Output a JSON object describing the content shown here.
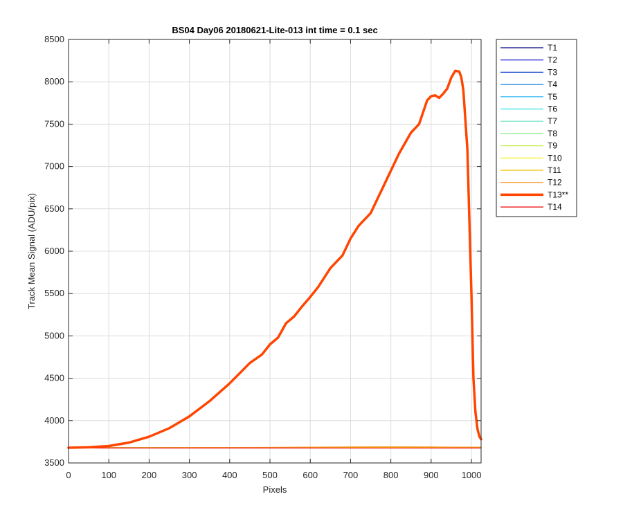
{
  "chart_data": {
    "type": "line",
    "title": "BS04 Day06 20180621-Lite-013 int time = 0.1 sec",
    "xlabel": "Pixels",
    "ylabel": "Track Mean Signal (ADU/pix)",
    "xlim": [
      0,
      1024
    ],
    "ylim": [
      3500,
      8500
    ],
    "xticks": [
      0,
      100,
      200,
      300,
      400,
      500,
      600,
      700,
      800,
      900,
      1000
    ],
    "yticks": [
      3500,
      4000,
      4500,
      5000,
      5500,
      6000,
      6500,
      7000,
      7500,
      8000,
      8500
    ],
    "grid": true,
    "legend_position": "outside-right-top",
    "series": [
      {
        "name": "T1",
        "color": "#00007f",
        "width": 1.2,
        "x": [
          0,
          1024
        ],
        "y": [
          3680,
          3680
        ]
      },
      {
        "name": "T2",
        "color": "#0000c8",
        "width": 1.2,
        "x": [
          0,
          1024
        ],
        "y": [
          3680,
          3680
        ]
      },
      {
        "name": "T3",
        "color": "#0a3ccc",
        "width": 1.2,
        "x": [
          0,
          1024
        ],
        "y": [
          3680,
          3680
        ]
      },
      {
        "name": "T4",
        "color": "#1580e0",
        "width": 1.2,
        "x": [
          0,
          1024
        ],
        "y": [
          3680,
          3680
        ]
      },
      {
        "name": "T5",
        "color": "#1fb0f0",
        "width": 1.2,
        "x": [
          0,
          1024
        ],
        "y": [
          3680,
          3680
        ]
      },
      {
        "name": "T6",
        "color": "#2ce0e8",
        "width": 1.2,
        "x": [
          0,
          1024
        ],
        "y": [
          3680,
          3680
        ]
      },
      {
        "name": "T7",
        "color": "#66e0c0",
        "width": 1.2,
        "x": [
          0,
          1024
        ],
        "y": [
          3680,
          3680
        ]
      },
      {
        "name": "T8",
        "color": "#88e888",
        "width": 1.2,
        "x": [
          0,
          1024
        ],
        "y": [
          3680,
          3680
        ]
      },
      {
        "name": "T9",
        "color": "#c8ee55",
        "width": 1.2,
        "x": [
          0,
          1024
        ],
        "y": [
          3680,
          3680
        ]
      },
      {
        "name": "T10",
        "color": "#f5f000",
        "width": 1.2,
        "x": [
          0,
          1024
        ],
        "y": [
          3680,
          3684
        ]
      },
      {
        "name": "T11",
        "color": "#f0c000",
        "width": 1.2,
        "x": [
          0,
          250,
          500,
          700,
          800,
          900,
          1024
        ],
        "y": [
          3678,
          3680,
          3683,
          3688,
          3689,
          3688,
          3685
        ]
      },
      {
        "name": "T12",
        "color": "#f59a2a",
        "width": 1.2,
        "x": [
          0,
          250,
          500,
          700,
          800,
          900,
          1024
        ],
        "y": [
          3680,
          3681,
          3684,
          3689,
          3690,
          3689,
          3686
        ]
      },
      {
        "name": "T13**",
        "color": "#ff4500",
        "width": 3.5,
        "x": [
          0,
          50,
          100,
          150,
          200,
          250,
          300,
          350,
          400,
          450,
          480,
          500,
          520,
          540,
          560,
          580,
          600,
          620,
          650,
          680,
          700,
          720,
          750,
          780,
          800,
          820,
          850,
          870,
          890,
          900,
          910,
          920,
          930,
          940,
          950,
          960,
          970,
          975,
          980,
          990,
          1000,
          1005,
          1010,
          1015,
          1020,
          1024
        ],
        "y": [
          3680,
          3685,
          3700,
          3740,
          3810,
          3910,
          4050,
          4230,
          4440,
          4680,
          4780,
          4900,
          4980,
          5150,
          5230,
          5350,
          5460,
          5580,
          5800,
          5950,
          6150,
          6300,
          6450,
          6750,
          6950,
          7150,
          7400,
          7500,
          7780,
          7830,
          7840,
          7810,
          7860,
          7920,
          8050,
          8130,
          8120,
          8050,
          7900,
          7200,
          5500,
          4500,
          4100,
          3900,
          3810,
          3780
        ]
      },
      {
        "name": "T14",
        "color": "#e80000",
        "width": 1.2,
        "x": [
          0,
          1024
        ],
        "y": [
          3676,
          3676
        ]
      }
    ]
  }
}
